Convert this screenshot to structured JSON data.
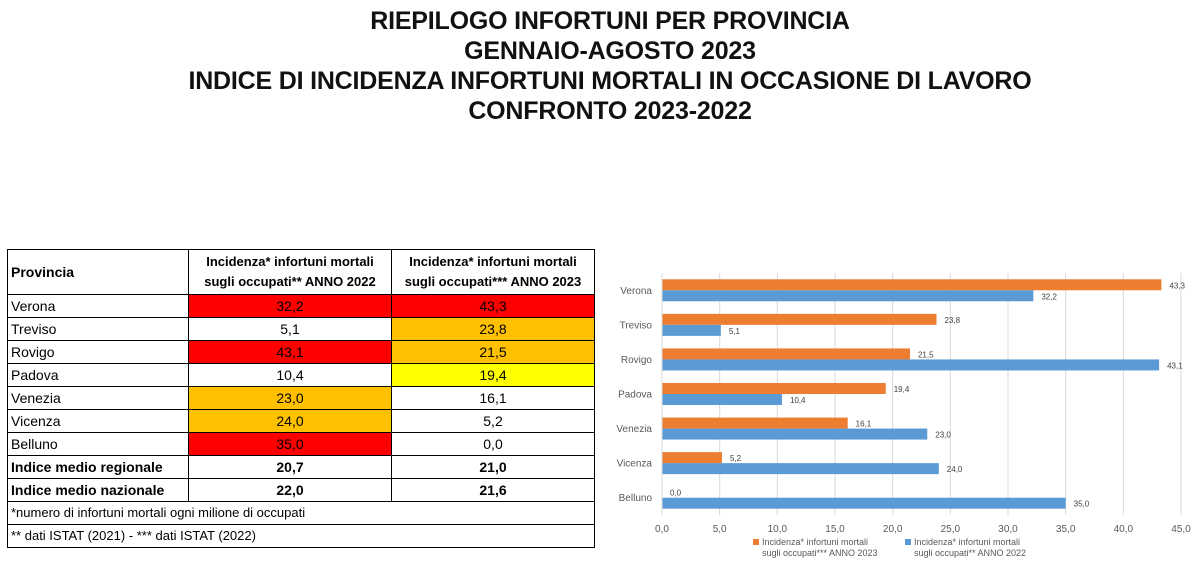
{
  "title": {
    "line1": "RIEPILOGO INFORTUNI PER PROVINCIA",
    "line2": "GENNAIO-AGOSTO 2023",
    "line3": "INDICE DI INCIDENZA INFORTUNI MORTALI IN OCCASIONE DI LAVORO",
    "line4": "CONFRONTO 2023-2022"
  },
  "table": {
    "header_provincia": "Provincia",
    "header_2022_line1": "Incidenza* infortuni mortali",
    "header_2022_line2": "sugli occupati** ANNO 2022",
    "header_2023_line1": "Incidenza* infortuni mortali",
    "header_2023_line2": "sugli occupati*** ANNO 2023",
    "rows": [
      {
        "name": "Verona",
        "v2022": "32,2",
        "v2023": "43,3",
        "c2022": "#ff0000",
        "c2023": "#ff0000"
      },
      {
        "name": "Treviso",
        "v2022": "5,1",
        "v2023": "23,8",
        "c2022": "#ffffff",
        "c2023": "#ffc000"
      },
      {
        "name": "Rovigo",
        "v2022": "43,1",
        "v2023": "21,5",
        "c2022": "#ff0000",
        "c2023": "#ffc000"
      },
      {
        "name": "Padova",
        "v2022": "10,4",
        "v2023": "19,4",
        "c2022": "#ffffff",
        "c2023": "#ffff00"
      },
      {
        "name": "Venezia",
        "v2022": "23,0",
        "v2023": "16,1",
        "c2022": "#ffc000",
        "c2023": "#ffffff"
      },
      {
        "name": "Vicenza",
        "v2022": "24,0",
        "v2023": "5,2",
        "c2022": "#ffc000",
        "c2023": "#ffffff"
      },
      {
        "name": "Belluno",
        "v2022": "35,0",
        "v2023": "0,0",
        "c2022": "#ff0000",
        "c2023": "#ffffff"
      }
    ],
    "regional": {
      "name": "Indice medio regionale",
      "v2022": "20,7",
      "v2023": "21,0"
    },
    "national": {
      "name": "Indice medio nazionale",
      "v2022": "22,0",
      "v2023": "21,6"
    },
    "note1": "*numero di infortuni mortali ogni milione di occupati",
    "note2": "** dati ISTAT (2021) - *** dati ISTAT (2022)"
  },
  "chart_data": {
    "type": "bar",
    "orientation": "horizontal",
    "categories": [
      "Verona",
      "Treviso",
      "Rovigo",
      "Padova",
      "Venezia",
      "Vicenza",
      "Belluno"
    ],
    "series": [
      {
        "name": "Incidenza* infortuni mortali sugli occupati*** ANNO 2023",
        "legend_line1": "Incidenza* infortuni mortali",
        "legend_line2": "sugli occupati*** ANNO 2023",
        "color": "#ed7d31",
        "values": [
          43.3,
          23.8,
          21.5,
          19.4,
          16.1,
          5.2,
          0.0
        ],
        "labels": [
          "43,3",
          "23,8",
          "21,5",
          "19,4",
          "16,1",
          "5,2",
          "0,0"
        ]
      },
      {
        "name": "Incidenza* infortuni mortali sugli occupati** ANNO 2022",
        "legend_line1": "Incidenza* infortuni mortali",
        "legend_line2": "sugli occupati** ANNO 2022",
        "color": "#5b9bd5",
        "values": [
          32.2,
          5.1,
          43.1,
          10.4,
          23.0,
          24.0,
          35.0
        ],
        "labels": [
          "32,2",
          "5,1",
          "43,1",
          "10,4",
          "23,0",
          "24,0",
          "35,0"
        ]
      }
    ],
    "xlim": [
      0,
      45
    ],
    "ticks": [
      0,
      5,
      10,
      15,
      20,
      25,
      30,
      35,
      40,
      45
    ],
    "tick_labels": [
      "0,0",
      "5,0",
      "10,0",
      "15,0",
      "20,0",
      "25,0",
      "30,0",
      "35,0",
      "40,0",
      "45,0"
    ],
    "grid": true,
    "legend": "bottom"
  }
}
